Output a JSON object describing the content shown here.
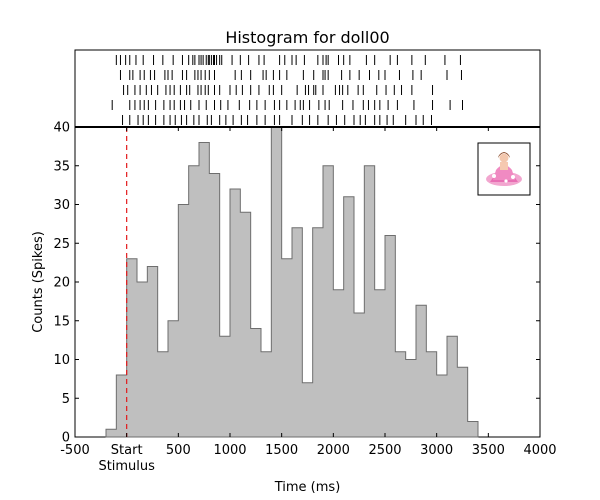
{
  "chart_data": {
    "type": "bar",
    "title": "Histogram for doll00",
    "xlabel": "Time (ms)",
    "ylabel": "Counts (Spikes)",
    "xlim": [
      -500,
      4000
    ],
    "ylim": [
      0,
      40
    ],
    "x_ticks": [
      -500,
      0,
      500,
      1000,
      1500,
      2000,
      2500,
      3000,
      3500,
      4000
    ],
    "x_tick_labels": [
      "-500",
      "Start",
      "500",
      "1000",
      "1500",
      "2000",
      "2500",
      "3000",
      "3500",
      "4000"
    ],
    "x_tick_sublabel": "Stimulus",
    "y_ticks": [
      0,
      5,
      10,
      15,
      20,
      25,
      30,
      35,
      40
    ],
    "y_tick_labels": [
      "0",
      "5",
      "10",
      "15",
      "20",
      "25",
      "30",
      "35",
      "40"
    ],
    "bin_width_ms": 100,
    "bin_edges_start": -200,
    "values": [
      1,
      8,
      23,
      20,
      22,
      11,
      15,
      30,
      35,
      38,
      34,
      13,
      32,
      29,
      14,
      11,
      40,
      23,
      27,
      7,
      27,
      35,
      19,
      31,
      16,
      35,
      19,
      26,
      11,
      10,
      17,
      11,
      8,
      13,
      9,
      2
    ],
    "stimulus_onset_ms": 0,
    "colors": {
      "bar_fill": "#bfbfbf",
      "bar_edge": "#6e6e6e",
      "stimulus_line": "#e31a1c",
      "raster": "#000000"
    },
    "raster": {
      "trials": [
        [
          -100,
          -60,
          -10,
          30,
          90,
          160,
          260,
          350,
          450,
          540,
          600,
          640,
          660,
          700,
          720,
          740,
          770,
          790,
          800,
          820,
          840,
          850,
          870,
          900,
          920,
          1020,
          1100,
          1180,
          1280,
          1330,
          1480,
          1530,
          1600,
          1640,
          1720,
          1850,
          1900,
          1930,
          1950,
          2050,
          2100,
          2160,
          2320,
          2400,
          2550,
          2620,
          2760,
          2890,
          3080,
          3230
        ],
        [
          -60,
          30,
          60,
          130,
          170,
          230,
          270,
          370,
          400,
          440,
          540,
          580,
          660,
          690,
          720,
          760,
          800,
          850,
          1050,
          1110,
          1200,
          1320,
          1350,
          1420,
          1480,
          1550,
          1710,
          1810,
          1900,
          1920,
          1950,
          2080,
          2160,
          2250,
          2350,
          2440,
          2500,
          2640,
          2770,
          2850,
          3100,
          3240
        ],
        [
          -30,
          10,
          80,
          130,
          190,
          240,
          300,
          380,
          420,
          460,
          520,
          580,
          610,
          690,
          720,
          760,
          790,
          850,
          900,
          1000,
          1060,
          1120,
          1200,
          1280,
          1380,
          1420,
          1500,
          1650,
          1730,
          1760,
          1810,
          1830,
          1900,
          2020,
          2060,
          2090,
          2140,
          2240,
          2290,
          2420,
          2510,
          2590,
          2660,
          2760,
          2960
        ],
        [
          -140,
          30,
          80,
          130,
          170,
          210,
          280,
          360,
          420,
          460,
          520,
          560,
          620,
          700,
          770,
          850,
          910,
          980,
          1090,
          1190,
          1260,
          1340,
          1430,
          1480,
          1550,
          1630,
          1680,
          1710,
          1770,
          1860,
          1920,
          1960,
          2090,
          2190,
          2290,
          2340,
          2400,
          2450,
          2530,
          2620,
          2780,
          2960,
          3130,
          3250
        ],
        [
          -40,
          30,
          110,
          160,
          210,
          280,
          360,
          420,
          470,
          530,
          580,
          650,
          700,
          780,
          820,
          900,
          960,
          1030,
          1110,
          1170,
          1260,
          1340,
          1430,
          1480,
          1600,
          1700,
          1770,
          1850,
          1950,
          2030,
          2110,
          2200,
          2260,
          2310,
          2400,
          2450,
          2520,
          2580,
          2700,
          2800,
          2870,
          2950
        ]
      ]
    },
    "inset_image": "doll-thumbnail"
  }
}
